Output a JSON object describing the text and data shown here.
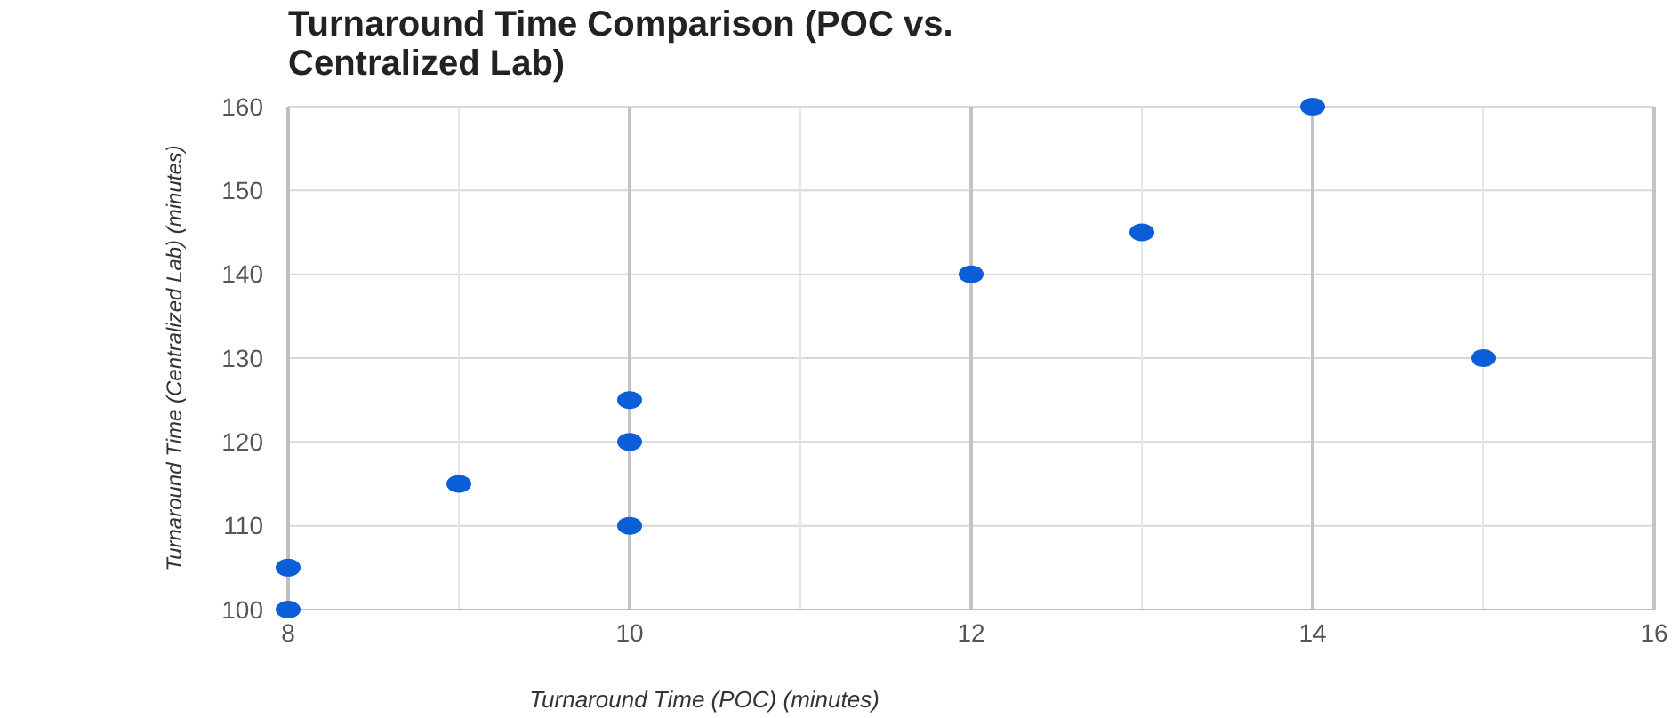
{
  "chart_data": {
    "type": "scatter",
    "title": "Turnaround Time Comparison (POC vs. Centralized Lab)",
    "xlabel": "Turnaround Time (POC) (minutes)",
    "ylabel": "Turnaround Time (Centralized Lab) (minutes)",
    "x": [
      8,
      8,
      9,
      10,
      10,
      10,
      12,
      13,
      14,
      15
    ],
    "series": [
      {
        "color": "#0b5ed7",
        "values": [
          100,
          105,
          115,
          110,
          120,
          125,
          140,
          145,
          160,
          130
        ]
      }
    ],
    "xlim": [
      8,
      16
    ],
    "xticks": [
      8,
      {
        "value": 9,
        "label": null
      },
      10,
      {
        "value": 11,
        "label": null
      },
      12,
      {
        "value": 13,
        "label": null
      },
      14,
      {
        "value": 15,
        "label": null
      },
      16
    ],
    "ylim": [
      100,
      160
    ],
    "yticks": [
      100,
      110,
      120,
      130,
      140,
      150,
      160
    ],
    "grid": true,
    "marker": "circle"
  }
}
